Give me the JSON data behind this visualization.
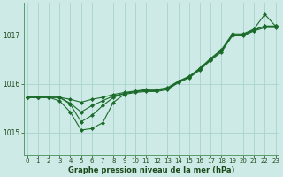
{
  "title": "Graphe pression niveau de la mer (hPa)",
  "bg_color": "#ceeae6",
  "grid_color": "#a8d4ce",
  "line_color": "#1a6b2a",
  "marker_color": "#1a6b2a",
  "xlim": [
    -0.3,
    23.3
  ],
  "ylim": [
    1014.55,
    1017.65
  ],
  "yticks": [
    1015,
    1016,
    1017
  ],
  "xticks": [
    0,
    1,
    2,
    3,
    4,
    5,
    6,
    7,
    8,
    9,
    10,
    11,
    12,
    13,
    14,
    15,
    16,
    17,
    18,
    19,
    20,
    21,
    22,
    23
  ],
  "series1": [
    1015.72,
    1015.72,
    1015.72,
    1015.72,
    1015.68,
    1015.62,
    1015.68,
    1015.72,
    1015.78,
    1015.82,
    1015.85,
    1015.88,
    1015.88,
    1015.92,
    1016.05,
    1016.15,
    1016.32,
    1016.52,
    1016.7,
    1017.02,
    1017.02,
    1017.12,
    1017.42,
    1017.18
  ],
  "series2": [
    1015.72,
    1015.72,
    1015.72,
    1015.72,
    1015.6,
    1015.42,
    1015.55,
    1015.65,
    1015.75,
    1015.8,
    1015.84,
    1015.86,
    1015.86,
    1015.9,
    1016.04,
    1016.14,
    1016.3,
    1016.5,
    1016.68,
    1017.0,
    1017.0,
    1017.1,
    1017.18,
    1017.18
  ],
  "series3": [
    1015.72,
    1015.72,
    1015.72,
    1015.72,
    1015.58,
    1015.22,
    1015.35,
    1015.55,
    1015.72,
    1015.8,
    1015.84,
    1015.86,
    1015.86,
    1015.9,
    1016.04,
    1016.14,
    1016.3,
    1016.5,
    1016.68,
    1017.0,
    1017.0,
    1017.1,
    1017.18,
    1017.18
  ],
  "series4": [
    1015.72,
    1015.72,
    1015.72,
    1015.65,
    1015.42,
    1015.05,
    1015.08,
    1015.2,
    1015.62,
    1015.78,
    1015.82,
    1015.84,
    1015.84,
    1015.88,
    1016.02,
    1016.12,
    1016.28,
    1016.48,
    1016.65,
    1016.98,
    1016.98,
    1017.08,
    1017.15,
    1017.15
  ]
}
